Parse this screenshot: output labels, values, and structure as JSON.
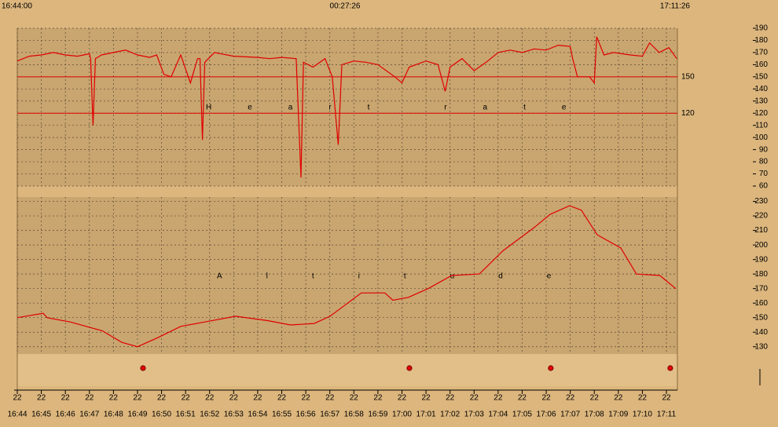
{
  "header": {
    "start": "16:44:00",
    "duration": "00:27:26",
    "end": "17:11:26"
  },
  "x_axis": {
    "xlim": [
      0,
      27.43
    ],
    "xticks": [
      {
        "value": 0,
        "label": "16:44"
      },
      {
        "value": 1,
        "label": "16:45"
      },
      {
        "value": 2,
        "label": "16:46"
      },
      {
        "value": 3,
        "label": "16:47"
      },
      {
        "value": 4,
        "label": "16:48"
      },
      {
        "value": 5,
        "label": "16:49"
      },
      {
        "value": 6,
        "label": "16:50"
      },
      {
        "value": 7,
        "label": "16:51"
      },
      {
        "value": 8,
        "label": "16:52"
      },
      {
        "value": 9,
        "label": "16:53"
      },
      {
        "value": 10,
        "label": "16:54"
      },
      {
        "value": 11,
        "label": "16:55"
      },
      {
        "value": 12,
        "label": "16:56"
      },
      {
        "value": 13,
        "label": "16:57"
      },
      {
        "value": 14,
        "label": "16:58"
      },
      {
        "value": 15,
        "label": "16:59"
      },
      {
        "value": 16,
        "label": "17:00"
      },
      {
        "value": 17,
        "label": "17:01"
      },
      {
        "value": 18,
        "label": "17:02"
      },
      {
        "value": 19,
        "label": "17:03"
      },
      {
        "value": 20,
        "label": "17:04"
      },
      {
        "value": 21,
        "label": "17:05"
      },
      {
        "value": 22,
        "label": "17:06"
      },
      {
        "value": 23,
        "label": "17:07"
      },
      {
        "value": 24,
        "label": "17:08"
      },
      {
        "value": 25,
        "label": "17:09"
      },
      {
        "value": 26,
        "label": "17:10"
      },
      {
        "value": 27,
        "label": "17:11"
      }
    ],
    "xtick_days": [
      "22",
      "22",
      "22",
      "22",
      "22",
      "22",
      "22",
      "22",
      "22",
      "22",
      "22",
      "22",
      "22",
      "22",
      "22",
      "22",
      "22",
      "22",
      "22",
      "22",
      "22",
      "22",
      "22",
      "22",
      "22",
      "22",
      "22",
      "22"
    ]
  },
  "markers": {
    "color": "#e00000",
    "x": [
      5.23,
      16.31,
      22.19,
      27.16
    ]
  },
  "chart_data": [
    {
      "type": "line",
      "title": "Heart rate",
      "color": "#e00000",
      "grid": true,
      "ylim": [
        60,
        190
      ],
      "yticks": [
        60,
        70,
        80,
        90,
        100,
        110,
        120,
        130,
        140,
        150,
        160,
        170,
        180,
        190
      ],
      "ref_lines": [
        150,
        120
      ],
      "x": [
        0,
        0.5,
        1,
        1.5,
        2,
        2.5,
        3,
        3.05,
        3.15,
        3.25,
        3.5,
        4,
        4.5,
        5,
        5.5,
        5.8,
        6.1,
        6.4,
        6.8,
        7.2,
        7.5,
        7.6,
        7.7,
        7.8,
        8.2,
        9,
        10,
        10.5,
        11,
        11.6,
        11.8,
        11.9,
        12.3,
        12.8,
        13.1,
        13.35,
        13.5,
        14,
        14.5,
        15,
        15.7,
        16,
        16.3,
        17,
        17.5,
        17.8,
        18,
        18.5,
        19,
        19.5,
        20,
        20.5,
        21,
        21.5,
        22,
        22.5,
        23,
        23.1,
        23.3,
        23.8,
        24,
        24.1,
        24.4,
        24.8,
        25.5,
        26,
        26.3,
        26.7,
        27.1,
        27.43
      ],
      "values": [
        163,
        167,
        168,
        170,
        168,
        167,
        169,
        165,
        110,
        165,
        168,
        170,
        172,
        168,
        166,
        168,
        152,
        150,
        168,
        145,
        165,
        165,
        98,
        162,
        170,
        167,
        166,
        165,
        166,
        165,
        67,
        162,
        158,
        165,
        150,
        94,
        160,
        163,
        162,
        160,
        150,
        145,
        158,
        163,
        160,
        138,
        158,
        165,
        155,
        162,
        170,
        172,
        170,
        173,
        172,
        176,
        175,
        165,
        150,
        150,
        145,
        183,
        168,
        170,
        168,
        167,
        178,
        170,
        174,
        165
      ]
    },
    {
      "type": "line",
      "title": "Altitude",
      "color": "#e00000",
      "grid": true,
      "ylim": [
        125,
        233
      ],
      "yticks": [
        130,
        140,
        150,
        160,
        170,
        180,
        190,
        200,
        210,
        220,
        230
      ],
      "x": [
        0,
        1.08,
        1.24,
        2.22,
        3.53,
        4.35,
        5.0,
        5.82,
        6.8,
        7.78,
        9.08,
        10.39,
        11.37,
        12.35,
        13.01,
        13.5,
        14.31,
        15.29,
        15.62,
        16.27,
        17.09,
        18.07,
        19.22,
        20.2,
        21.5,
        22.16,
        22.97,
        23.46,
        24.12,
        25.1,
        25.75,
        26.73,
        27.39
      ],
      "values": [
        150,
        153,
        150,
        147,
        141,
        133,
        130,
        136,
        144,
        147,
        151,
        148,
        145,
        146,
        151,
        157,
        167,
        167,
        162,
        164,
        170,
        179,
        180,
        196,
        212,
        221,
        227,
        224,
        207,
        198,
        180,
        179,
        170
      ]
    }
  ]
}
